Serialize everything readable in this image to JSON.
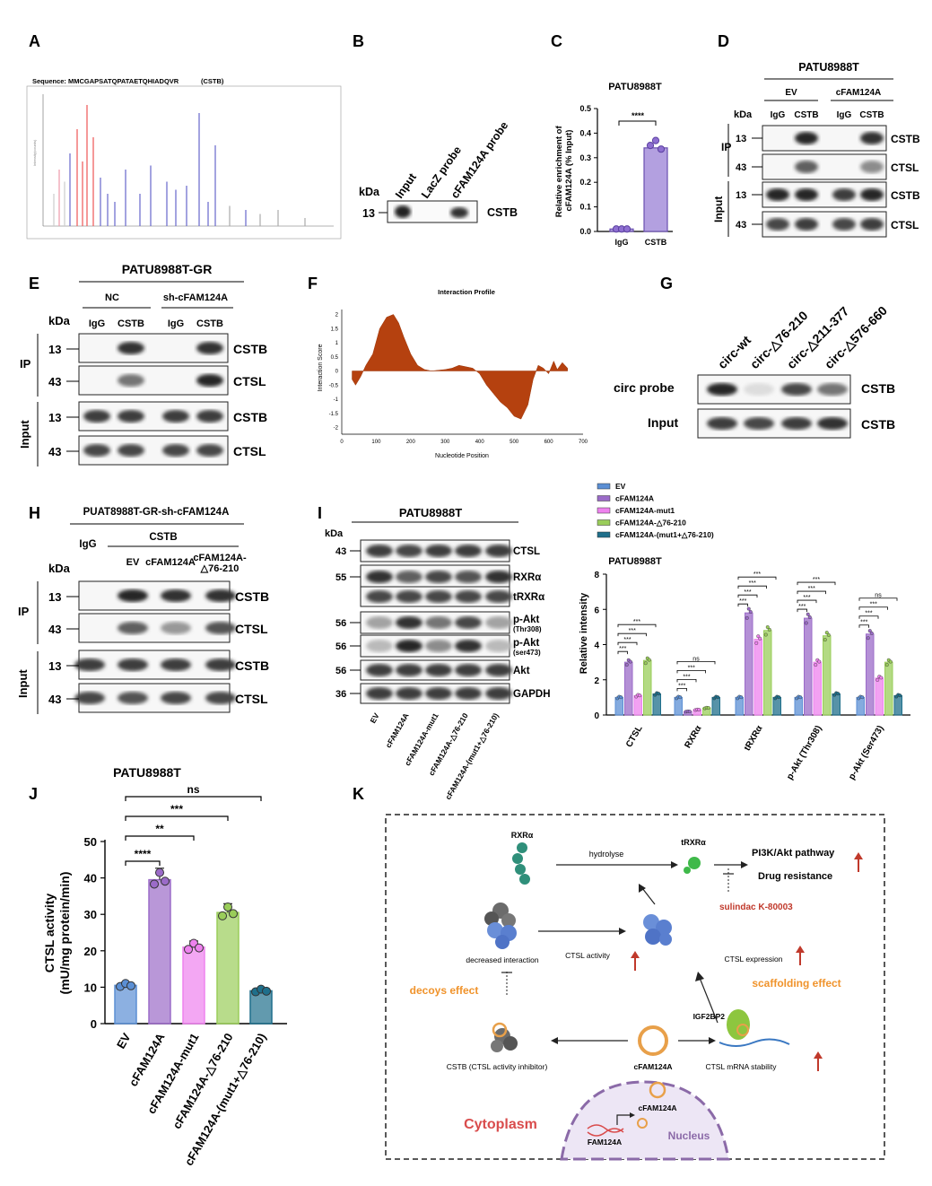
{
  "panels": {
    "A": "A",
    "B": "B",
    "C": "C",
    "D": "D",
    "E": "E",
    "F": "F",
    "G": "G",
    "H": "H",
    "I": "I",
    "J": "J",
    "K": "K"
  },
  "a": {
    "sequence": "Sequence: MMCGAPSATQPATAETQHIADQVR",
    "protein": "(CSTB)",
    "ylabel": "Intensity(counts)"
  },
  "b": {
    "lanes": [
      "Input",
      "LacZ probe",
      "cFAM124A probe"
    ],
    "kda": "kDa",
    "mw": "13",
    "band": "CSTB"
  },
  "c": {
    "title": "PATU8988T",
    "ylabel": "Relative enrichment of cFAM124A (% Input)",
    "yticks": [
      "0.0",
      "0.1",
      "0.2",
      "0.3",
      "0.4",
      "0.5"
    ],
    "categories": [
      "IgG",
      "CSTB"
    ],
    "sig": "****"
  },
  "d": {
    "cell": "PATU8988T",
    "groups": [
      "EV",
      "cFAM124A"
    ],
    "lanes": [
      "IgG",
      "CSTB",
      "IgG",
      "CSTB"
    ],
    "kda": "kDa",
    "ip": "IP",
    "input": "Input",
    "rows": [
      {
        "mw": "13",
        "label": "CSTB"
      },
      {
        "mw": "43",
        "label": "CTSL"
      },
      {
        "mw": "13",
        "label": "CSTB"
      },
      {
        "mw": "43",
        "label": "CTSL"
      }
    ]
  },
  "e": {
    "cell": "PATU8988T-GR",
    "groups": [
      "NC",
      "sh-cFAM124A"
    ],
    "lanes": [
      "IgG",
      "CSTB",
      "IgG",
      "CSTB"
    ],
    "kda": "kDa",
    "ip": "IP",
    "input": "Input",
    "rows": [
      {
        "mw": "13",
        "label": "CSTB"
      },
      {
        "mw": "43",
        "label": "CTSL"
      },
      {
        "mw": "13",
        "label": "CSTB"
      },
      {
        "mw": "43",
        "label": "CTSL"
      }
    ]
  },
  "f": {
    "title": "Interaction Profile",
    "xlabel": "Nucleotide Position",
    "ylabel": "Interaction Score",
    "xticks": [
      "0",
      "100",
      "200",
      "300",
      "400",
      "500",
      "600",
      "700"
    ],
    "yticks": [
      "2",
      "1.5",
      "1",
      "0.5",
      "0",
      "-0.5",
      "-1",
      "-1.5",
      "-2"
    ]
  },
  "g": {
    "lanes": [
      "circ-wt",
      "circ-△76-210",
      "circ-△211-377",
      "circ-△576-660"
    ],
    "rows": [
      {
        "left": "circ probe",
        "right": "CSTB"
      },
      {
        "left": "Input",
        "right": "CSTB"
      }
    ]
  },
  "h": {
    "cell": "PUAT8988T-GR-sh-cFAM124A",
    "igg": "IgG",
    "cstb": "CSTB",
    "lanes": [
      "EV",
      "cFAM124A",
      "cFAM124A-\n△76-210"
    ],
    "kda": "kDa",
    "ip": "IP",
    "input": "Input",
    "rows": [
      {
        "mw": "13",
        "label": "CSTB"
      },
      {
        "mw": "43",
        "label": "CTSL"
      },
      {
        "mw": "13",
        "label": "CSTB"
      },
      {
        "mw": "43",
        "label": "CTSL"
      }
    ]
  },
  "i": {
    "cell": "PATU8988T",
    "kda": "kDa",
    "rows": [
      {
        "mw": "43",
        "label": "CTSL"
      },
      {
        "mw": "55",
        "label": "RXRα"
      },
      {
        "mw": "",
        "label": "tRXRα"
      },
      {
        "mw": "56",
        "label": "p-Akt",
        "sub": "(Thr308)"
      },
      {
        "mw": "56",
        "label": "p-Akt",
        "sub": "(ser473)"
      },
      {
        "mw": "56",
        "label": "Akt"
      },
      {
        "mw": "36",
        "label": "GAPDH"
      }
    ],
    "lanes": [
      "EV",
      "cFAM124A",
      "cFAM124A-mut1",
      "cFAM124A-△76-210",
      "cFAM124A-(mut1+△76-210)"
    ]
  },
  "chart_data": [
    {
      "type": "bar",
      "title": "PATU8988T",
      "ylabel": "Relative enrichment of cFAM124A (% Input)",
      "categories": [
        "IgG",
        "CSTB"
      ],
      "values": [
        0.01,
        0.34
      ],
      "ylim": [
        0,
        0.5
      ],
      "colors": [
        "#8e7cc3",
        "#8e7cc3"
      ],
      "annotations": [
        "****"
      ]
    },
    {
      "type": "bar",
      "title": "PATU8988T",
      "ylabel": "Relative intensity",
      "categories": [
        "CTSL",
        "RXRα",
        "tRXRα",
        "p-Akt (Thr308)",
        "p-Akt (Ser473)"
      ],
      "ylim": [
        0,
        8
      ],
      "yticks": [
        "0",
        "2",
        "4",
        "6",
        "8"
      ],
      "series": [
        {
          "name": "EV",
          "values": [
            1,
            1,
            1,
            1,
            1
          ],
          "color": "#5b8fd4"
        },
        {
          "name": "cFAM124A",
          "values": [
            3.0,
            0.2,
            5.8,
            5.5,
            4.6
          ],
          "color": "#9b6bc8"
        },
        {
          "name": "cFAM124A-mut1",
          "values": [
            1.1,
            0.3,
            4.3,
            3.0,
            2.1
          ],
          "color": "#ee82ee"
        },
        {
          "name": "cFAM124A-△76-210",
          "values": [
            3.1,
            0.4,
            4.8,
            4.5,
            3.0
          ],
          "color": "#9acd5a"
        },
        {
          "name": "cFAM124A-(mut1+△76-210)",
          "values": [
            1.2,
            1.0,
            1.0,
            1.2,
            1.1
          ],
          "color": "#1f6f8b"
        }
      ],
      "sig": [
        "***",
        "ns",
        "***",
        "***",
        "ns"
      ]
    },
    {
      "type": "bar",
      "title": "PATU8988T",
      "ylabel": "CTSL activity\n(mU/mg protein/min)",
      "categories": [
        "EV",
        "cFAM124A",
        "cFAM124A-mut1",
        "cFAM124A-△76-210",
        "cFAM124A-(mut1+△76-210)"
      ],
      "values": [
        10.5,
        39.5,
        21,
        30.5,
        9
      ],
      "ylim": [
        0,
        50
      ],
      "yticks": [
        "0",
        "10",
        "20",
        "30",
        "40",
        "50"
      ],
      "colors": [
        "#5b8fd4",
        "#9b6bc8",
        "#ee82ee",
        "#9acd5a",
        "#1f6f8b"
      ],
      "sig": [
        "****",
        "**",
        "***",
        "ns"
      ]
    }
  ],
  "k": {
    "rxra": "RXRα",
    "hydrolyse": "hydrolyse",
    "trxra": "tRXRα",
    "pathway": "PI3K/Akt pathway",
    "drug": "Drug resistance",
    "sulindac": "sulindac K-80003",
    "decreased": "decreased interaction",
    "ctsl_activity": "CTSL activity",
    "ctsl_expression": "CTSL expression",
    "decoys": "decoys effect",
    "scaffolding": "scaffolding effect",
    "igf": "IGF2BP2",
    "cstb": "CSTB (CTSL activity inhibitor)",
    "cfam": "cFAM124A",
    "mrna": "CTSL mRNA stability",
    "cytoplasm": "Cytoplasm",
    "cfam2": "cFAM124A",
    "fam": "FAM124A",
    "nucleus": "Nucleus"
  }
}
